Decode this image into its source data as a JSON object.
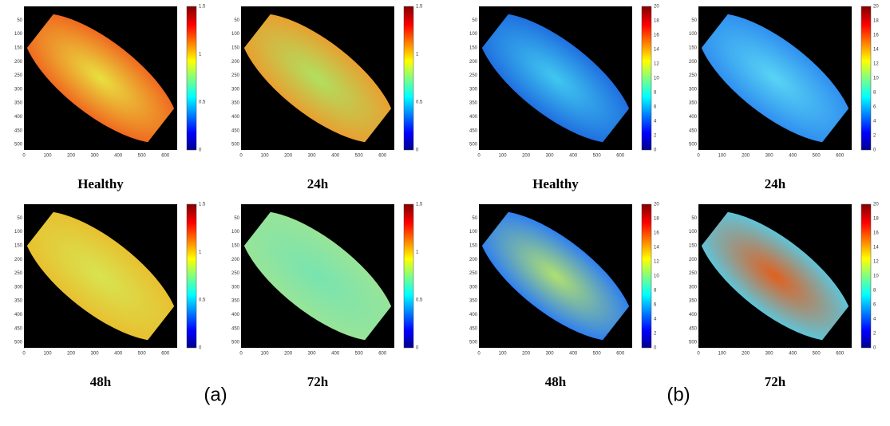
{
  "panels": [
    {
      "label": "(a)",
      "images": [
        {
          "caption": "Healthy"
        },
        {
          "caption": "24h"
        },
        {
          "caption": "48h"
        },
        {
          "caption": "72h"
        }
      ],
      "colorbar_ticks": [
        0,
        0.5,
        1,
        1.5
      ]
    },
    {
      "label": "(b)",
      "images": [
        {
          "caption": "Healthy"
        },
        {
          "caption": "24h"
        },
        {
          "caption": "48h"
        },
        {
          "caption": "72h"
        }
      ],
      "colorbar_ticks": [
        0,
        2,
        4,
        6,
        8,
        10,
        12,
        14,
        16,
        18,
        20
      ]
    }
  ],
  "x_ticks": [
    0,
    100,
    200,
    300,
    400,
    500,
    600
  ],
  "y_ticks": [
    50,
    100,
    150,
    200,
    250,
    300,
    350,
    400,
    450,
    500
  ]
}
